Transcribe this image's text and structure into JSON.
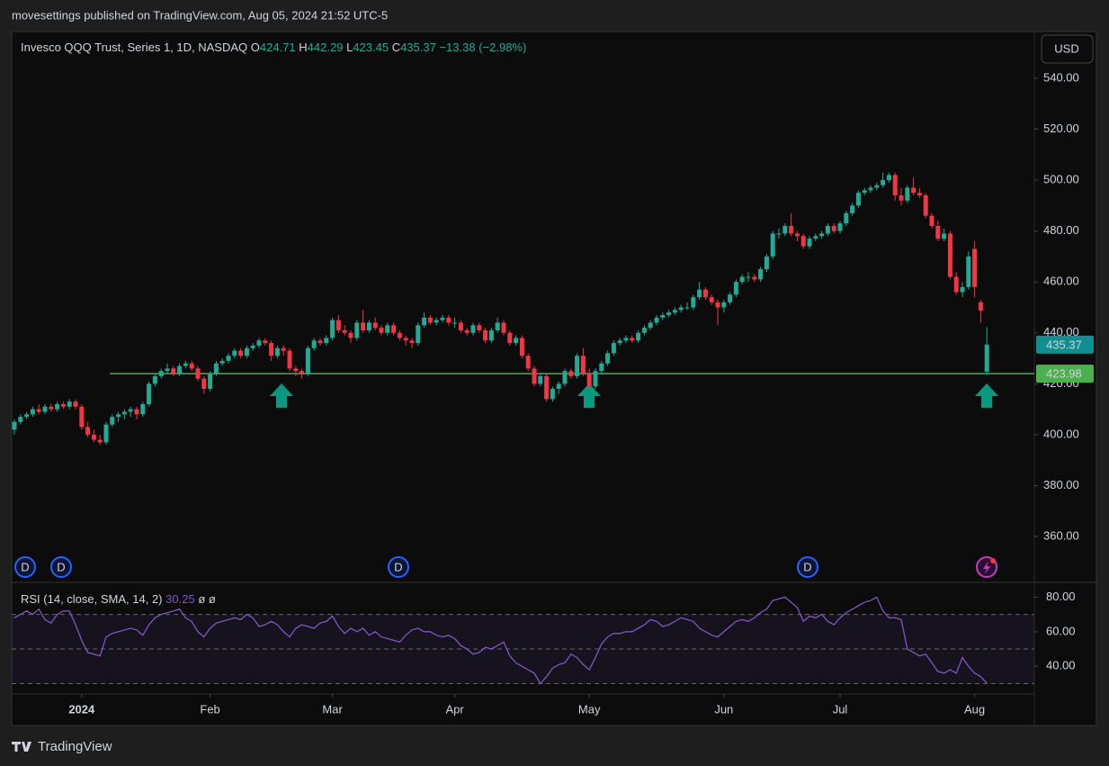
{
  "header": {
    "published": "movesettings published on TradingView.com, Aug 05, 2024 21:52 UTC-5",
    "currency": "USD",
    "brand": "TradingView"
  },
  "chart_data": {
    "type": "candlestick",
    "title": "Invesco QQQ Trust, Series 1, 1D, NASDAQ",
    "ohlc_labels": [
      "O",
      "H",
      "L",
      "C"
    ],
    "change_label": "−13.38 (−2.98%)",
    "up_color": "#22ab94",
    "down_color": "#f23645",
    "candles": [
      [
        402,
        406,
        400,
        405
      ],
      [
        405,
        408,
        404,
        407
      ],
      [
        407,
        409,
        406,
        408
      ],
      [
        408,
        411,
        407,
        410
      ],
      [
        410,
        412,
        408,
        409
      ],
      [
        409,
        412,
        408,
        411
      ],
      [
        411,
        412,
        409,
        410
      ],
      [
        410,
        413,
        409,
        412
      ],
      [
        412,
        413,
        410,
        411
      ],
      [
        411,
        414,
        410,
        413
      ],
      [
        413,
        414,
        410,
        411
      ],
      [
        411,
        412,
        402,
        403
      ],
      [
        403,
        405,
        399,
        400
      ],
      [
        400,
        402,
        397,
        398
      ],
      [
        398,
        400,
        396,
        397
      ],
      [
        397,
        405,
        396,
        404
      ],
      [
        404,
        408,
        403,
        407
      ],
      [
        407,
        409,
        405,
        408
      ],
      [
        408,
        410,
        406,
        409
      ],
      [
        409,
        411,
        407,
        410
      ],
      [
        410,
        411,
        406,
        408
      ],
      [
        408,
        413,
        407,
        412
      ],
      [
        412,
        421,
        411,
        420
      ],
      [
        420,
        424,
        419,
        423
      ],
      [
        423,
        426,
        422,
        425
      ],
      [
        425,
        428,
        424,
        426
      ],
      [
        426,
        427,
        423,
        424
      ],
      [
        424,
        428,
        423,
        427
      ],
      [
        427,
        429,
        426,
        428
      ],
      [
        428,
        429,
        425,
        426
      ],
      [
        426,
        427,
        421,
        422
      ],
      [
        422,
        423,
        416,
        418
      ],
      [
        418,
        425,
        417,
        424
      ],
      [
        424,
        429,
        423,
        428
      ],
      [
        428,
        430,
        427,
        429
      ],
      [
        429,
        432,
        428,
        431
      ],
      [
        431,
        434,
        430,
        433
      ],
      [
        433,
        434,
        430,
        431
      ],
      [
        431,
        435,
        430,
        434
      ],
      [
        434,
        436,
        433,
        435
      ],
      [
        435,
        438,
        434,
        437
      ],
      [
        437,
        438,
        435,
        436
      ],
      [
        436,
        437,
        429,
        431
      ],
      [
        431,
        435,
        430,
        434
      ],
      [
        434,
        435,
        431,
        433
      ],
      [
        433,
        434,
        425,
        426
      ],
      [
        426,
        427,
        423,
        425
      ],
      [
        425,
        426,
        422,
        424
      ],
      [
        424,
        435,
        423,
        434
      ],
      [
        434,
        438,
        433,
        437
      ],
      [
        437,
        438,
        435,
        436
      ],
      [
        436,
        439,
        435,
        438
      ],
      [
        438,
        446,
        437,
        445
      ],
      [
        445,
        447,
        440,
        441
      ],
      [
        441,
        443,
        439,
        440
      ],
      [
        440,
        441,
        436,
        438
      ],
      [
        438,
        445,
        437,
        444
      ],
      [
        444,
        449,
        440,
        441
      ],
      [
        441,
        445,
        440,
        444
      ],
      [
        444,
        446,
        441,
        442
      ],
      [
        442,
        443,
        439,
        440
      ],
      [
        440,
        444,
        439,
        443
      ],
      [
        443,
        444,
        439,
        440
      ],
      [
        440,
        441,
        437,
        438
      ],
      [
        438,
        439,
        435,
        437
      ],
      [
        437,
        438,
        434,
        436
      ],
      [
        436,
        444,
        435,
        443
      ],
      [
        443,
        448,
        442,
        446
      ],
      [
        446,
        447,
        443,
        444
      ],
      [
        444,
        446,
        443,
        445
      ],
      [
        445,
        447,
        444,
        446
      ],
      [
        446,
        447,
        443,
        444
      ],
      [
        444,
        446,
        442,
        444
      ],
      [
        444,
        445,
        440,
        441
      ],
      [
        441,
        442,
        439,
        440
      ],
      [
        440,
        444,
        439,
        443
      ],
      [
        443,
        444,
        440,
        441
      ],
      [
        441,
        442,
        436,
        437
      ],
      [
        437,
        442,
        436,
        441
      ],
      [
        441,
        446,
        440,
        444
      ],
      [
        444,
        445,
        439,
        440
      ],
      [
        440,
        441,
        435,
        436
      ],
      [
        436,
        439,
        435,
        438
      ],
      [
        438,
        439,
        430,
        431
      ],
      [
        431,
        432,
        425,
        426
      ],
      [
        426,
        427,
        419,
        420
      ],
      [
        420,
        424,
        419,
        423
      ],
      [
        423,
        424,
        413,
        414
      ],
      [
        414,
        419,
        413,
        418
      ],
      [
        418,
        421,
        416,
        420
      ],
      [
        420,
        426,
        419,
        425
      ],
      [
        425,
        426,
        422,
        423
      ],
      [
        423,
        432,
        422,
        431
      ],
      [
        431,
        434,
        423,
        424
      ],
      [
        424,
        426,
        418,
        419
      ],
      [
        419,
        426,
        418,
        425
      ],
      [
        425,
        429,
        424,
        428
      ],
      [
        428,
        433,
        427,
        432
      ],
      [
        432,
        437,
        431,
        436
      ],
      [
        436,
        438,
        435,
        437
      ],
      [
        437,
        439,
        436,
        438
      ],
      [
        438,
        439,
        436,
        437
      ],
      [
        437,
        441,
        436,
        440
      ],
      [
        440,
        443,
        439,
        442
      ],
      [
        442,
        445,
        441,
        444
      ],
      [
        444,
        447,
        443,
        446
      ],
      [
        446,
        448,
        445,
        447
      ],
      [
        447,
        449,
        446,
        448
      ],
      [
        448,
        450,
        447,
        449
      ],
      [
        449,
        451,
        448,
        450
      ],
      [
        450,
        452,
        449,
        450
      ],
      [
        450,
        455,
        449,
        454
      ],
      [
        454,
        460,
        453,
        457
      ],
      [
        457,
        458,
        453,
        454
      ],
      [
        454,
        455,
        451,
        452
      ],
      [
        452,
        453,
        443,
        450
      ],
      [
        450,
        453,
        448,
        452
      ],
      [
        452,
        456,
        451,
        455
      ],
      [
        455,
        461,
        454,
        460
      ],
      [
        460,
        463,
        459,
        462
      ],
      [
        462,
        464,
        460,
        462
      ],
      [
        462,
        463,
        460,
        461
      ],
      [
        461,
        466,
        460,
        465
      ],
      [
        465,
        471,
        464,
        470
      ],
      [
        470,
        480,
        469,
        479
      ],
      [
        479,
        481,
        477,
        479
      ],
      [
        479,
        483,
        478,
        482
      ],
      [
        482,
        487,
        478,
        479
      ],
      [
        479,
        480,
        476,
        478
      ],
      [
        478,
        479,
        473,
        474
      ],
      [
        474,
        478,
        473,
        477
      ],
      [
        477,
        479,
        476,
        478
      ],
      [
        478,
        480,
        477,
        479
      ],
      [
        479,
        483,
        478,
        482
      ],
      [
        482,
        483,
        479,
        480
      ],
      [
        480,
        484,
        479,
        483
      ],
      [
        483,
        488,
        482,
        487
      ],
      [
        487,
        491,
        486,
        490
      ],
      [
        490,
        496,
        489,
        495
      ],
      [
        495,
        497,
        494,
        496
      ],
      [
        496,
        498,
        495,
        497
      ],
      [
        497,
        499,
        496,
        498
      ],
      [
        498,
        503,
        497,
        500
      ],
      [
        500,
        503,
        499,
        502
      ],
      [
        502,
        503,
        492,
        494
      ],
      [
        494,
        497,
        490,
        492
      ],
      [
        492,
        498,
        491,
        497
      ],
      [
        497,
        501,
        494,
        495
      ],
      [
        495,
        497,
        493,
        494
      ],
      [
        494,
        495,
        485,
        486
      ],
      [
        486,
        487,
        481,
        482
      ],
      [
        482,
        484,
        476,
        477
      ],
      [
        477,
        481,
        476,
        479
      ],
      [
        479,
        480,
        461,
        462
      ],
      [
        462,
        464,
        455,
        456
      ],
      [
        456,
        460,
        454,
        458
      ],
      [
        458,
        472,
        457,
        470
      ],
      [
        473,
        476,
        454,
        458
      ],
      [
        452,
        453,
        444,
        448.75
      ],
      [
        424.71,
        442.29,
        423.45,
        435.37
      ]
    ],
    "xticks": [
      {
        "value": 11,
        "label": "2024"
      },
      {
        "value": 32,
        "label": "Feb"
      },
      {
        "value": 52,
        "label": "Mar"
      },
      {
        "value": 72,
        "label": "Apr"
      },
      {
        "value": 94,
        "label": "May"
      },
      {
        "value": 116,
        "label": "Jun"
      },
      {
        "value": 135,
        "label": "Jul"
      },
      {
        "value": 157,
        "label": "Aug"
      }
    ],
    "ylim": [
      342,
      558
    ],
    "yticks": [
      {
        "value": 360,
        "label": "360.00"
      },
      {
        "value": 380,
        "label": "380.00"
      },
      {
        "value": 400,
        "label": "400.00"
      },
      {
        "value": 420,
        "label": "420.00"
      },
      {
        "value": 440,
        "label": "440.00"
      },
      {
        "value": 460,
        "label": "460.00"
      },
      {
        "value": 480,
        "label": "480.00"
      },
      {
        "value": 500,
        "label": "500.00"
      },
      {
        "value": 520,
        "label": "520.00"
      },
      {
        "value": 540,
        "label": "540.00"
      }
    ],
    "hline": {
      "value": 423.98,
      "color": "#4caf50"
    },
    "dividend_label": "D",
    "rsi": {
      "label": "RSI (14, close, SMA, 14, 2)",
      "ma_label": "ø",
      "bb_label": "ø",
      "color": "#7e57c2",
      "values": [
        68,
        70,
        72,
        70,
        73,
        67,
        65,
        70,
        72,
        72,
        64,
        55,
        48,
        47,
        46,
        57,
        59,
        60,
        61,
        62,
        61,
        58,
        64,
        68,
        70,
        71,
        72,
        73,
        68,
        66,
        60,
        57,
        62,
        65,
        66,
        67,
        68,
        67,
        70,
        68,
        63,
        64,
        66,
        64,
        60,
        57,
        62,
        64,
        63,
        62,
        65,
        66,
        69,
        63,
        59,
        62,
        60,
        62,
        58,
        60,
        57,
        56,
        55,
        54,
        58,
        61,
        62,
        60,
        60,
        58,
        57,
        58,
        56,
        52,
        50,
        47,
        48,
        51,
        50,
        52,
        54,
        46,
        42,
        40,
        38,
        36,
        30,
        34,
        39,
        41,
        42,
        47,
        45,
        41,
        38,
        45,
        53,
        57,
        59,
        59,
        60,
        60,
        62,
        64,
        67,
        66,
        63,
        64,
        66,
        68,
        67,
        66,
        62,
        60,
        58,
        57,
        60,
        63,
        66,
        67,
        66,
        68,
        71,
        73,
        78,
        79,
        80,
        77,
        74,
        66,
        69,
        68,
        70,
        66,
        64,
        68,
        71,
        73,
        75,
        77,
        78,
        80,
        72,
        68,
        68,
        67,
        50,
        48,
        46,
        47,
        42,
        37,
        36,
        38,
        36,
        45,
        40,
        36,
        34,
        30.25
      ],
      "ylim": [
        24,
        88
      ],
      "yticks": [
        {
          "value": 40,
          "label": "40.00"
        },
        {
          "value": 60,
          "label": "60.00"
        },
        {
          "value": 80,
          "label": "80.00"
        }
      ],
      "bands": [
        70,
        50,
        30
      ]
    }
  }
}
